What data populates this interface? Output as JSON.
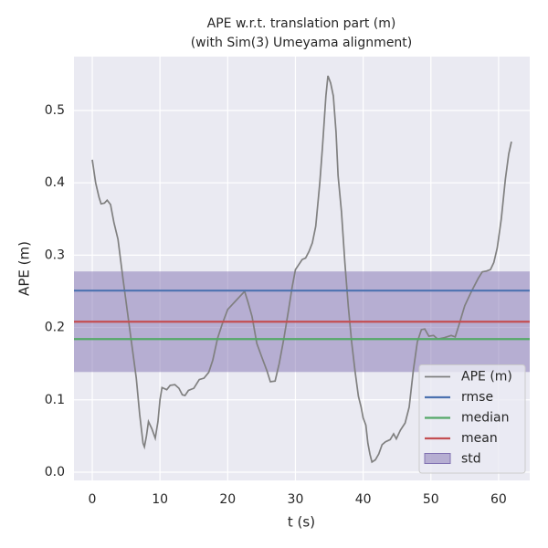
{
  "chart_data": {
    "type": "line",
    "title": [
      "APE w.r.t. translation part (m)",
      "(with Sim(3) Umeyama alignment)"
    ],
    "xlabel": "t (s)",
    "ylabel": "APE (m)",
    "xlim": [
      -2.7,
      64.6
    ],
    "ylim": [
      -0.0114,
      0.5745
    ],
    "xticks": [
      0,
      10,
      20,
      30,
      40,
      50,
      60
    ],
    "yticks": [
      {
        "value": 0,
        "label": "0.0"
      },
      0.1,
      0.2,
      0.3,
      0.4,
      0.5
    ],
    "grid": true,
    "legend": "lower right",
    "x": [
      0,
      0.5,
      1,
      1.3,
      1.8,
      2.2,
      2.7,
      3.2,
      3.8,
      4.5,
      5.5,
      6.5,
      7.0,
      7.5,
      7.7,
      8.0,
      8.3,
      8.8,
      9.3,
      9.7,
      10.0,
      10.3,
      11.0,
      11.5,
      12.2,
      12.8,
      13.3,
      13.7,
      14.2,
      15.0,
      15.8,
      16.5,
      17.2,
      17.8,
      18.5,
      19.2,
      20.0,
      21.0,
      22.0,
      22.5,
      23.0,
      23.6,
      24.3,
      25.0,
      25.8,
      26.3,
      27.0,
      27.6,
      28.3,
      29.0,
      29.5,
      30.0,
      30.5,
      31.0,
      31.5,
      32.0,
      32.5,
      33.0,
      33.6,
      34.0,
      34.5,
      34.8,
      35.2,
      35.6,
      36.0,
      36.3,
      36.8,
      37.3,
      37.8,
      38.3,
      38.8,
      39.3,
      39.7,
      40.0,
      40.4,
      40.7,
      41.0,
      41.3,
      41.8,
      42.3,
      42.8,
      43.3,
      44.0,
      44.5,
      44.9,
      45.5,
      46.2,
      46.8,
      47.4,
      48.0,
      48.6,
      49.1,
      49.7,
      50.4,
      51.0,
      52.0,
      53.0,
      53.6,
      54.2,
      55.0,
      56.0,
      57.0,
      57.6,
      58.2,
      58.8,
      59.3,
      59.8,
      60.4,
      61.0,
      61.5,
      61.9
    ],
    "series": [
      {
        "name": "APE (m)",
        "color": "#808080",
        "values": [
          0.432,
          0.4,
          0.38,
          0.371,
          0.372,
          0.376,
          0.37,
          0.345,
          0.322,
          0.27,
          0.2,
          0.13,
          0.08,
          0.04,
          0.035,
          0.05,
          0.07,
          0.06,
          0.047,
          0.07,
          0.1,
          0.117,
          0.114,
          0.12,
          0.121,
          0.116,
          0.107,
          0.106,
          0.113,
          0.116,
          0.128,
          0.13,
          0.138,
          0.155,
          0.185,
          0.205,
          0.225,
          0.235,
          0.245,
          0.25,
          0.235,
          0.215,
          0.178,
          0.16,
          0.14,
          0.125,
          0.126,
          0.15,
          0.185,
          0.225,
          0.255,
          0.28,
          0.287,
          0.294,
          0.296,
          0.305,
          0.317,
          0.34,
          0.4,
          0.45,
          0.52,
          0.548,
          0.538,
          0.52,
          0.47,
          0.41,
          0.36,
          0.29,
          0.23,
          0.18,
          0.14,
          0.105,
          0.09,
          0.075,
          0.065,
          0.04,
          0.025,
          0.014,
          0.017,
          0.025,
          0.038,
          0.042,
          0.045,
          0.053,
          0.046,
          0.058,
          0.068,
          0.09,
          0.14,
          0.18,
          0.197,
          0.198,
          0.188,
          0.189,
          0.184,
          0.186,
          0.189,
          0.187,
          0.205,
          0.23,
          0.25,
          0.268,
          0.277,
          0.278,
          0.28,
          0.29,
          0.31,
          0.35,
          0.405,
          0.44,
          0.457
        ]
      }
    ],
    "stats": [
      {
        "name": "rmse",
        "color": "#4c72b0",
        "value": 0.251
      },
      {
        "name": "median",
        "color": "#55a868",
        "value": 0.184
      },
      {
        "name": "mean",
        "color": "#c44e52",
        "value": 0.208
      }
    ],
    "std": {
      "name": "std",
      "color": "#8172b2",
      "value": 0.0695
    }
  }
}
